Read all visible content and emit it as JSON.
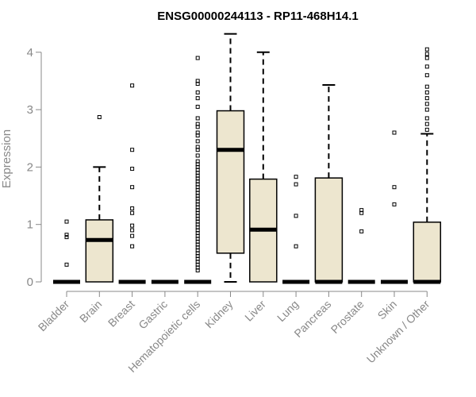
{
  "chart_data": {
    "type": "box",
    "title": "ENSG00000244113 - RP11-468H14.1",
    "xlabel": "",
    "ylabel": "Expression",
    "ylim": [
      0,
      4.3
    ],
    "yticks": [
      "0",
      "1",
      "2",
      "3",
      "4"
    ],
    "box_fill": "#ede6cf",
    "categories": [
      {
        "label": "Bladder",
        "q1": 0,
        "median": 0,
        "q3": 0,
        "whisker_low": 0,
        "whisker_high": 0,
        "outliers": [
          0.3,
          0.78,
          0.82,
          1.05
        ]
      },
      {
        "label": "Brain",
        "q1": 0,
        "median": 0.73,
        "q3": 1.08,
        "whisker_low": 0,
        "whisker_high": 2.0,
        "outliers": [
          2.87
        ]
      },
      {
        "label": "Breast",
        "q1": 0,
        "median": 0,
        "q3": 0,
        "whisker_low": 0,
        "whisker_high": 0,
        "outliers": [
          0.62,
          0.8,
          0.9,
          0.98,
          1.2,
          1.28,
          1.65,
          1.97,
          2.3,
          3.42
        ]
      },
      {
        "label": "Gastric",
        "q1": 0,
        "median": 0,
        "q3": 0,
        "whisker_low": 0,
        "whisker_high": 0,
        "outliers": []
      },
      {
        "label": "Hematopoietic cells",
        "q1": 0,
        "median": 0,
        "q3": 0,
        "whisker_low": 0,
        "whisker_high": 0,
        "outliers": [
          0.2,
          0.25,
          0.3,
          0.35,
          0.4,
          0.45,
          0.5,
          0.55,
          0.6,
          0.65,
          0.7,
          0.75,
          0.8,
          0.85,
          0.9,
          0.95,
          1.0,
          1.05,
          1.1,
          1.15,
          1.2,
          1.25,
          1.3,
          1.35,
          1.4,
          1.45,
          1.5,
          1.55,
          1.6,
          1.65,
          1.7,
          1.75,
          1.8,
          1.85,
          1.9,
          1.95,
          2.0,
          2.05,
          2.1,
          2.2,
          2.3,
          2.35,
          2.45,
          2.55,
          2.6,
          2.7,
          2.75,
          2.85,
          3.05,
          3.2,
          3.3,
          3.45,
          3.5,
          3.9
        ]
      },
      {
        "label": "Kidney",
        "q1": 0.5,
        "median": 2.3,
        "q3": 2.98,
        "whisker_low": 0,
        "whisker_high": 4.32,
        "outliers": []
      },
      {
        "label": "Liver",
        "q1": 0,
        "median": 0.91,
        "q3": 1.79,
        "whisker_low": 0,
        "whisker_high": 4.0,
        "outliers": []
      },
      {
        "label": "Lung",
        "q1": 0,
        "median": 0,
        "q3": 0,
        "whisker_low": 0,
        "whisker_high": 0,
        "outliers": [
          0.62,
          1.15,
          1.7,
          1.83
        ]
      },
      {
        "label": "Pancreas",
        "q1": 0,
        "median": 0,
        "q3": 1.81,
        "whisker_low": 0,
        "whisker_high": 3.43,
        "outliers": []
      },
      {
        "label": "Prostate",
        "q1": 0,
        "median": 0,
        "q3": 0,
        "whisker_low": 0,
        "whisker_high": 0,
        "outliers": [
          0.88,
          1.2,
          1.25
        ]
      },
      {
        "label": "Skin",
        "q1": 0,
        "median": 0,
        "q3": 0,
        "whisker_low": 0,
        "whisker_high": 0,
        "outliers": [
          1.35,
          1.65,
          2.6
        ]
      },
      {
        "label": "Unknown / Other",
        "q1": 0,
        "median": 0,
        "q3": 1.04,
        "whisker_low": 0,
        "whisker_high": 2.58,
        "outliers": [
          2.65,
          2.75,
          2.85,
          3.0,
          3.1,
          3.2,
          3.3,
          3.4,
          3.6,
          3.75,
          3.9,
          3.97,
          4.05
        ]
      }
    ]
  }
}
